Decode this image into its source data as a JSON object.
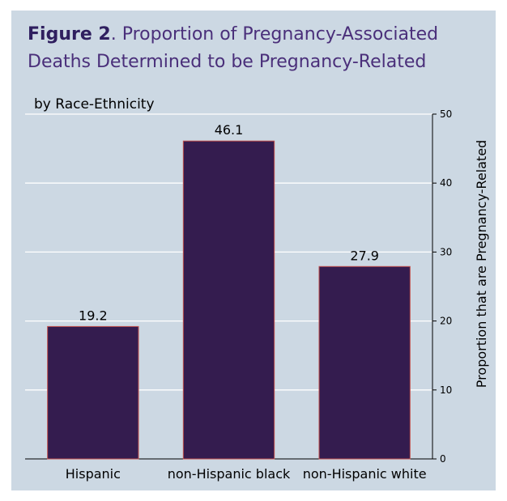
{
  "figure": {
    "label": "Figure 2",
    "title_rest": ". Proportion of Pregnancy-Associated Deaths Determined to be Pregnancy-Related"
  },
  "chart_data": {
    "type": "bar",
    "subtitle": "by Race-Ethnicity",
    "categories": [
      "Hispanic",
      "non-Hispanic black",
      "non-Hispanic white"
    ],
    "values": [
      19.2,
      46.1,
      27.9
    ],
    "data_labels": [
      "19.2",
      "46.1",
      "27.9"
    ],
    "ylabel": "Proportion that are Pregnancy-Related",
    "ylim": [
      0,
      50
    ],
    "yticks": [
      0,
      10,
      20,
      30,
      40,
      50
    ],
    "y_axis_side": "right",
    "grid": true,
    "colors": {
      "bar": "#341c4f",
      "bar_edge": "#c0504d",
      "grid": "#ffffff",
      "panel": "#ccd8e3",
      "title": "#4a2f7a"
    }
  }
}
